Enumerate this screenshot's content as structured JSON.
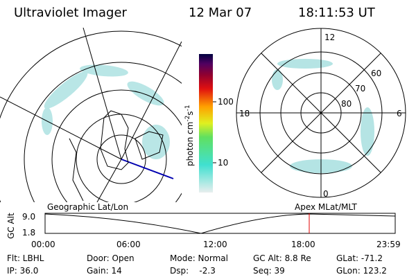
{
  "header": {
    "title": "Ultraviolet Imager",
    "date": "12 Mar 07",
    "time": "18:11:53 UT"
  },
  "colorbar": {
    "label": "photon cm",
    "exp1": "-2",
    "unit2": "s",
    "exp2": "-1",
    "ticks": [
      "100",
      "10"
    ]
  },
  "map": {
    "title": "Geographic Lat/Lon"
  },
  "polar_plot": {
    "title": "Apex  MLat/MLT",
    "hours": [
      "12",
      "18",
      "6",
      "0"
    ],
    "latitudes": [
      "60",
      "70",
      "80"
    ]
  },
  "altitude_plot": {
    "ylabel": "GC Alt",
    "yticks": [
      "9.0",
      "1.8"
    ],
    "xticks": [
      "00:00",
      "06:00",
      "12:00",
      "18:00",
      "23:59"
    ]
  },
  "info": [
    [
      "Flt: LBHL",
      "Door: Open",
      "Mode: Normal",
      "GC Alt: 8.8 Re",
      "GLat: -71.2"
    ],
    [
      "IP: 36.0",
      "Gain: 14",
      "Dsp:    -2.3",
      "Seq: 39",
      "GLon: 123.2"
    ]
  ]
}
